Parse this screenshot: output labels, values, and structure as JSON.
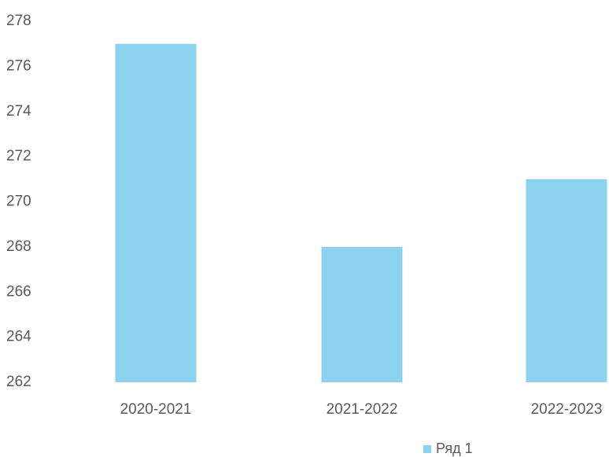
{
  "chart_data": {
    "type": "bar",
    "categories": [
      "2020-2021",
      "2021-2022",
      "2022-2023"
    ],
    "series": [
      {
        "name": "Ряд 1",
        "values": [
          277,
          268,
          271
        ],
        "color": "#8dd3f0"
      }
    ],
    "ylim": [
      262,
      278
    ],
    "yticks": [
      262,
      264,
      266,
      268,
      270,
      272,
      274,
      276,
      278
    ],
    "grid": false,
    "legend_position": "bottom"
  }
}
